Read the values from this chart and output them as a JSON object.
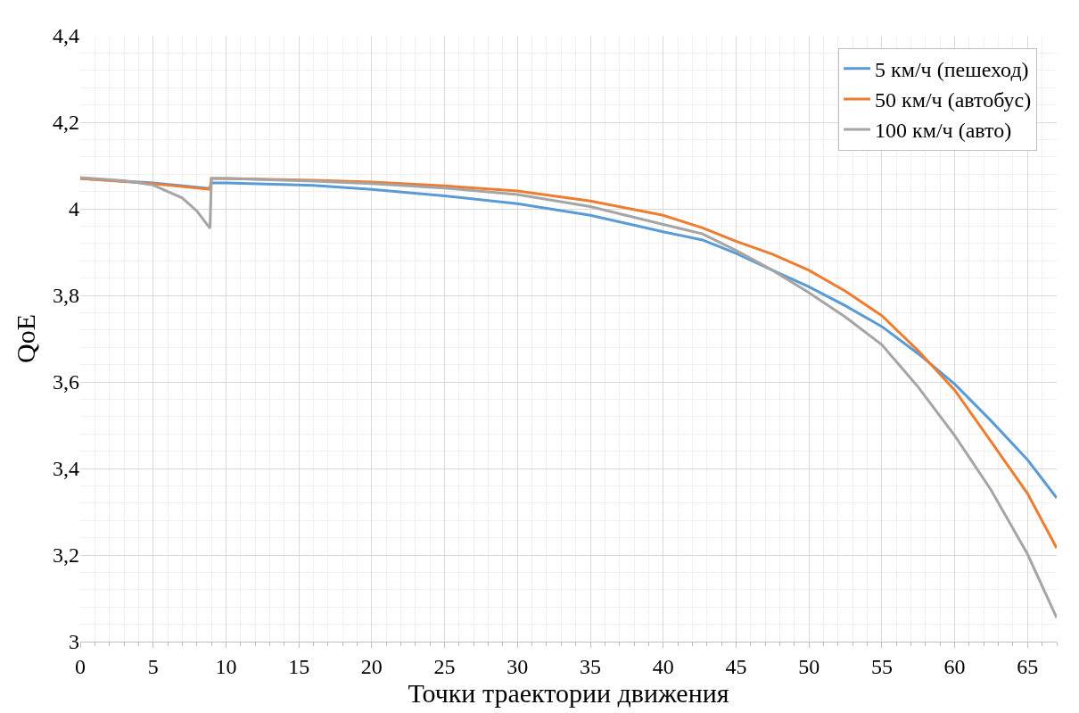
{
  "chart_data": {
    "type": "line",
    "xlabel": "Точки траектории движения",
    "ylabel": "QoE",
    "xlim": [
      0,
      67
    ],
    "xticks": [
      0,
      5,
      10,
      15,
      20,
      25,
      30,
      35,
      40,
      45,
      50,
      55,
      60,
      65
    ],
    "ylim": [
      3,
      4.4
    ],
    "yticks": [
      3,
      {
        "value": 3.2,
        "label": "3,2"
      },
      {
        "value": 3.4,
        "label": "3,4"
      },
      {
        "value": 3.6,
        "label": "3,6"
      },
      {
        "value": 3.8,
        "label": "3,8"
      },
      4,
      {
        "value": 4.2,
        "label": "4,2"
      },
      {
        "value": 4.4,
        "label": "4,4"
      }
    ],
    "grid": true,
    "legend": "top right",
    "marker": "none",
    "line_style": "solid",
    "series": [
      {
        "name": "5 км/ч (пешеход)",
        "color": "#5b9bd5",
        "x": [
          0,
          5,
          8.9,
          9,
          10,
          16,
          20,
          25,
          30,
          35,
          40,
          42.7,
          45,
          47.5,
          50,
          52.5,
          55,
          57.5,
          60,
          62.5,
          65,
          67
        ],
        "values": [
          4.07,
          4.06,
          4.047,
          4.06,
          4.06,
          4.054,
          4.045,
          4.03,
          4.012,
          3.985,
          3.947,
          3.928,
          3.897,
          3.858,
          3.82,
          3.776,
          3.728,
          3.665,
          3.595,
          3.51,
          3.42,
          3.332
        ]
      },
      {
        "name": "50 км/ч (автобус)",
        "color": "#ed7d31",
        "x": [
          0,
          5,
          8.9,
          9,
          10,
          16,
          20,
          25,
          30,
          35,
          40,
          42.7,
          45,
          47.5,
          50,
          52.5,
          55,
          57.5,
          60,
          62.5,
          65,
          67
        ],
        "values": [
          4.07,
          4.058,
          4.045,
          4.07,
          4.07,
          4.066,
          4.062,
          4.053,
          4.041,
          4.018,
          3.985,
          3.956,
          3.925,
          3.895,
          3.858,
          3.81,
          3.753,
          3.672,
          3.581,
          3.462,
          3.342,
          3.216
        ]
      },
      {
        "name": "100 км/ч (авто)",
        "color": "#a5a5a5",
        "x": [
          0,
          3,
          5,
          7,
          8,
          8.9,
          9,
          10,
          16,
          20,
          25,
          30,
          35,
          40,
          42.7,
          45,
          47.5,
          50,
          52.5,
          55,
          57.5,
          60,
          62.5,
          65,
          67
        ],
        "values": [
          4.072,
          4.065,
          4.055,
          4.025,
          3.995,
          3.955,
          4.07,
          4.07,
          4.064,
          4.058,
          4.048,
          4.033,
          4.005,
          3.964,
          3.942,
          3.904,
          3.858,
          3.806,
          3.75,
          3.686,
          3.588,
          3.476,
          3.35,
          3.202,
          3.055
        ]
      }
    ]
  }
}
